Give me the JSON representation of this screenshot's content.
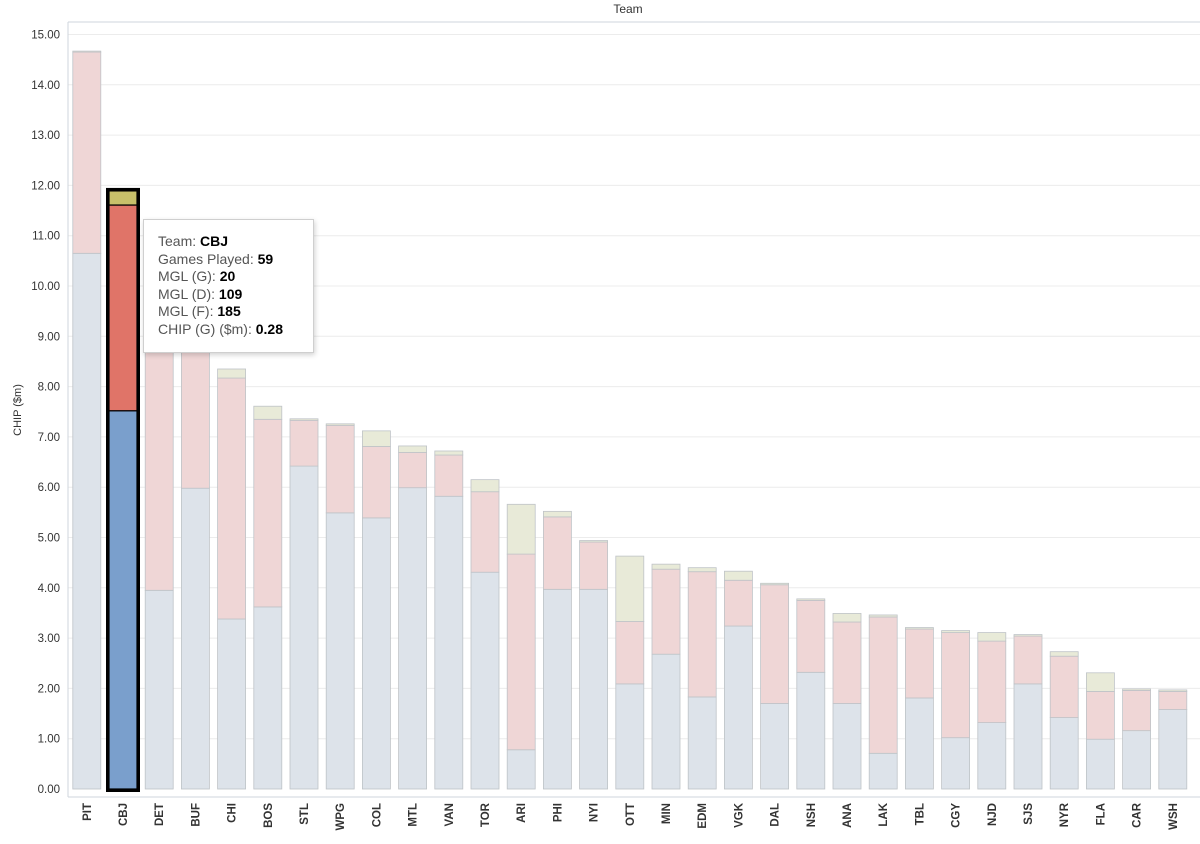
{
  "chart_data": {
    "type": "bar",
    "stacked": true,
    "title": "Team",
    "ylabel": "CHIP ($m)",
    "ylim": [
      0,
      15
    ],
    "yticks": [
      "0.00",
      "1.00",
      "2.00",
      "3.00",
      "4.00",
      "5.00",
      "6.00",
      "7.00",
      "8.00",
      "9.00",
      "10.00",
      "11.00",
      "12.00",
      "13.00",
      "14.00",
      "15.00"
    ],
    "grid": true,
    "categories": [
      "PIT",
      "CBJ",
      "DET",
      "BUF",
      "CHI",
      "BOS",
      "STL",
      "WPG",
      "COL",
      "MTL",
      "VAN",
      "TOR",
      "ARI",
      "PHI",
      "NYI",
      "OTT",
      "MIN",
      "EDM",
      "VGK",
      "DAL",
      "NSH",
      "ANA",
      "LAK",
      "TBL",
      "CGY",
      "NJD",
      "SJS",
      "NYR",
      "FLA",
      "CAR",
      "WSH"
    ],
    "series": [
      {
        "color": "#dde3ea",
        "highlight_color": "#7a9fcc",
        "values": [
          10.65,
          7.52,
          3.95,
          5.98,
          3.38,
          3.62,
          6.42,
          5.49,
          5.39,
          5.99,
          5.82,
          4.31,
          0.78,
          3.97,
          3.97,
          2.09,
          2.68,
          1.83,
          3.24,
          1.7,
          2.32,
          1.7,
          0.71,
          1.81,
          1.02,
          1.32,
          2.09,
          1.42,
          0.99,
          1.16,
          1.58
        ]
      },
      {
        "color": "#efd6d6",
        "highlight_color": "#e07468",
        "values": [
          4.0,
          4.09,
          4.85,
          2.82,
          4.79,
          3.73,
          0.91,
          1.74,
          1.42,
          0.7,
          0.82,
          1.6,
          3.89,
          1.44,
          0.94,
          1.24,
          1.69,
          2.49,
          0.91,
          2.36,
          1.43,
          1.62,
          2.71,
          1.37,
          2.09,
          1.62,
          0.95,
          1.22,
          0.95,
          0.8,
          0.36
        ]
      },
      {
        "color": "#e8ead8",
        "highlight_color": "#c8c06a",
        "values": [
          0.02,
          0.28,
          0.0,
          0.0,
          0.18,
          0.26,
          0.03,
          0.03,
          0.31,
          0.13,
          0.08,
          0.24,
          0.99,
          0.11,
          0.03,
          1.3,
          0.1,
          0.08,
          0.18,
          0.03,
          0.03,
          0.17,
          0.04,
          0.03,
          0.04,
          0.17,
          0.03,
          0.09,
          0.37,
          0.03,
          0.03
        ]
      }
    ],
    "highlighted": "CBJ"
  },
  "tooltip": {
    "team_label": "Team: ",
    "team_value": "CBJ",
    "gp_label": "Games Played: ",
    "gp_value": "59",
    "mglg_label": "MGL (G): ",
    "mglg_value": "20",
    "mgld_label": "MGL (D): ",
    "mgld_value": "109",
    "mglf_label": "MGL (F): ",
    "mglf_value": "185",
    "chip_label": "CHIP (G) ($m): ",
    "chip_value": "0.28"
  }
}
